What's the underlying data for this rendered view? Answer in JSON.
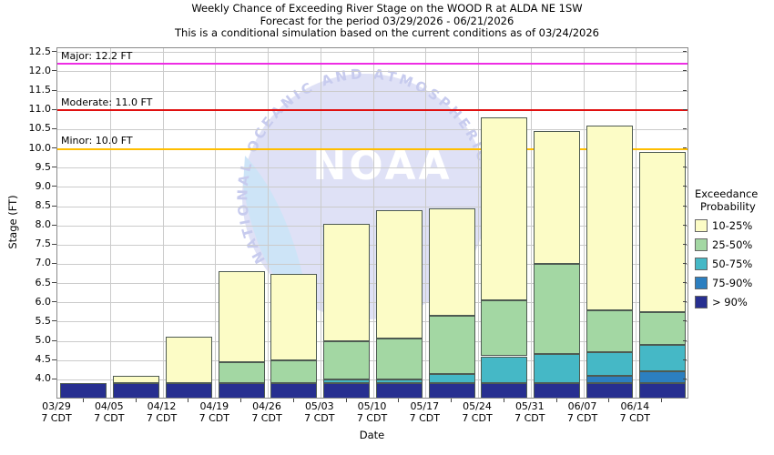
{
  "title": {
    "line1": "Weekly Chance of Exceeding River Stage on the WOOD R at ALDA NE 1SW",
    "line2": "Forecast for the period 03/29/2026 - 06/21/2026",
    "line3": "This is a conditional simulation based on the current conditions as of 03/24/2026"
  },
  "y_axis": {
    "label": "Stage (FT)",
    "tick_min": 4.0,
    "tick_max": 12.5,
    "tick_step": 0.5
  },
  "x_axis": {
    "label": "Date",
    "tick_sublabel": "7 CDT"
  },
  "thresholds": [
    {
      "name": "Major",
      "stage_ft": 12.2,
      "label": "Major: 12.2 FT",
      "color": "#ee2de4"
    },
    {
      "name": "Moderate",
      "stage_ft": 11.0,
      "label": "Moderate: 11.0 FT",
      "color": "#e01010"
    },
    {
      "name": "Minor",
      "stage_ft": 10.0,
      "label": "Minor: 10.0 FT",
      "color": "#ffbe00"
    }
  ],
  "legend": {
    "title_line1": "Exceedance",
    "title_line2": "Probability"
  },
  "watermark": {
    "arc_text": "NATIONAL OCEANIC AND ATMOSPHERIC",
    "center_text": "NOAA"
  },
  "chart_data": {
    "type": "bar",
    "stacked": true,
    "title": "Weekly Chance of Exceeding River Stage on the WOOD R at ALDA NE 1SW",
    "xlabel": "Date",
    "ylabel": "Stage (FT)",
    "ylim": [
      3.5,
      12.6
    ],
    "grid": true,
    "legend_position": "right",
    "baseline_stage_ft": 3.5,
    "categories": [
      "03/29",
      "04/05",
      "04/12",
      "04/19",
      "04/26",
      "05/03",
      "05/10",
      "05/17",
      "05/24",
      "05/31",
      "06/07",
      "06/14"
    ],
    "series": [
      {
        "name": "> 90%",
        "color": "#272f90",
        "stage_top_ft": [
          3.9,
          3.9,
          3.9,
          3.9,
          3.9,
          3.9,
          3.9,
          3.9,
          3.9,
          3.9,
          3.9,
          3.9
        ]
      },
      {
        "name": "75-90%",
        "color": "#2c7fc0",
        "stage_top_ft": [
          null,
          null,
          null,
          null,
          null,
          null,
          null,
          null,
          null,
          null,
          4.1,
          4.2
        ]
      },
      {
        "name": "50-75%",
        "color": "#45b8c6",
        "stage_top_ft": [
          null,
          null,
          null,
          null,
          null,
          4.0,
          4.0,
          4.15,
          4.6,
          4.65,
          4.7,
          4.9
        ]
      },
      {
        "name": "25-50%",
        "color": "#a3d7a3",
        "stage_top_ft": [
          null,
          null,
          null,
          4.45,
          4.5,
          5.0,
          5.05,
          5.65,
          6.05,
          7.0,
          5.8,
          5.75
        ]
      },
      {
        "name": "10-25%",
        "color": "#fcfcc6",
        "stage_top_ft": [
          null,
          4.1,
          5.1,
          6.8,
          6.75,
          8.05,
          8.4,
          8.45,
          10.8,
          10.45,
          10.6,
          9.9
        ]
      }
    ]
  }
}
